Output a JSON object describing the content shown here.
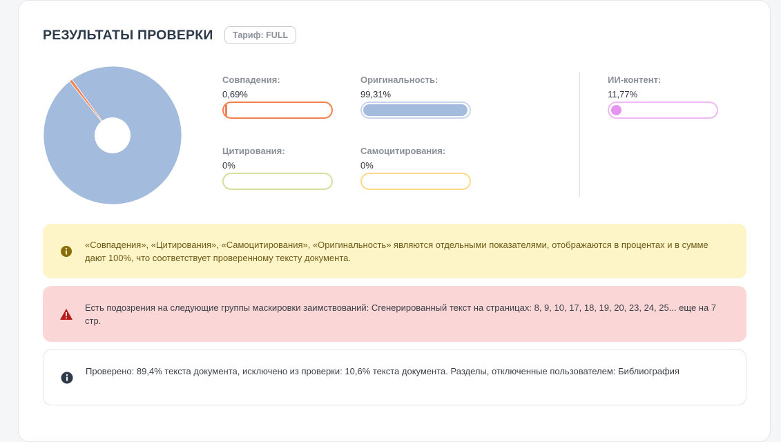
{
  "header": {
    "title": "РЕЗУЛЬТАТЫ ПРОВЕРКИ",
    "plan_badge": "Тариф: FULL"
  },
  "chart_data": {
    "type": "pie",
    "categories": [
      "Оригинальность",
      "Совпадения",
      "Цитирования",
      "Самоцитирования"
    ],
    "values": [
      99.31,
      0.69,
      0,
      0
    ],
    "colors": [
      "#a3bbdc",
      "#f5804f",
      "#d4e09b",
      "#ffd98a"
    ],
    "donut_hole": true
  },
  "metrics": {
    "matches": {
      "label": "Совпадения:",
      "value": "0,69%",
      "fraction": 0.0069,
      "color": "#f5804f"
    },
    "originality": {
      "label": "Оригинальность:",
      "value": "99,31%",
      "fraction": 0.9931,
      "color": "#a3bbdc"
    },
    "citations": {
      "label": "Цитирования:",
      "value": "0%",
      "fraction": 0,
      "color": "#d4e09b"
    },
    "self_citations": {
      "label": "Самоцитирования:",
      "value": "0%",
      "fraction": 0,
      "color": "#ffd98a"
    },
    "ai_content": {
      "label": "ИИ-контент:",
      "value": "11,77%",
      "fraction": 0.1177,
      "color": "#e594ef"
    }
  },
  "alerts": {
    "info_text": "«Совпадения», «Цитирования», «Самоцитирования», «Оригинальность» являются отдельными показателями, отображаются в процентах и в сумме дают 100%, что соответствует проверенному тексту документа.",
    "warning_text": "Есть подозрения на следующие группы маскировки заимствований:  Сгенерированный текст на страницах: 8, 9, 10, 17, 18, 19, 20, 23, 24, 25... еще на 7 стр.",
    "note_text": "Проверено: 89,4% текста документа, исключено из проверки: 10,6% текста документа. Разделы, отключенные пользователем: Библиография"
  },
  "colors": {
    "info_bg": "#fdf5c7",
    "info_icon": "#8a6d0b",
    "warning_bg": "#fbd6d6",
    "warning_icon": "#b71c1c",
    "note_icon": "#2d3a4a"
  },
  "icons": {
    "info": "info-circle-icon",
    "warning": "warning-triangle-icon",
    "note": "info-circle-icon"
  }
}
